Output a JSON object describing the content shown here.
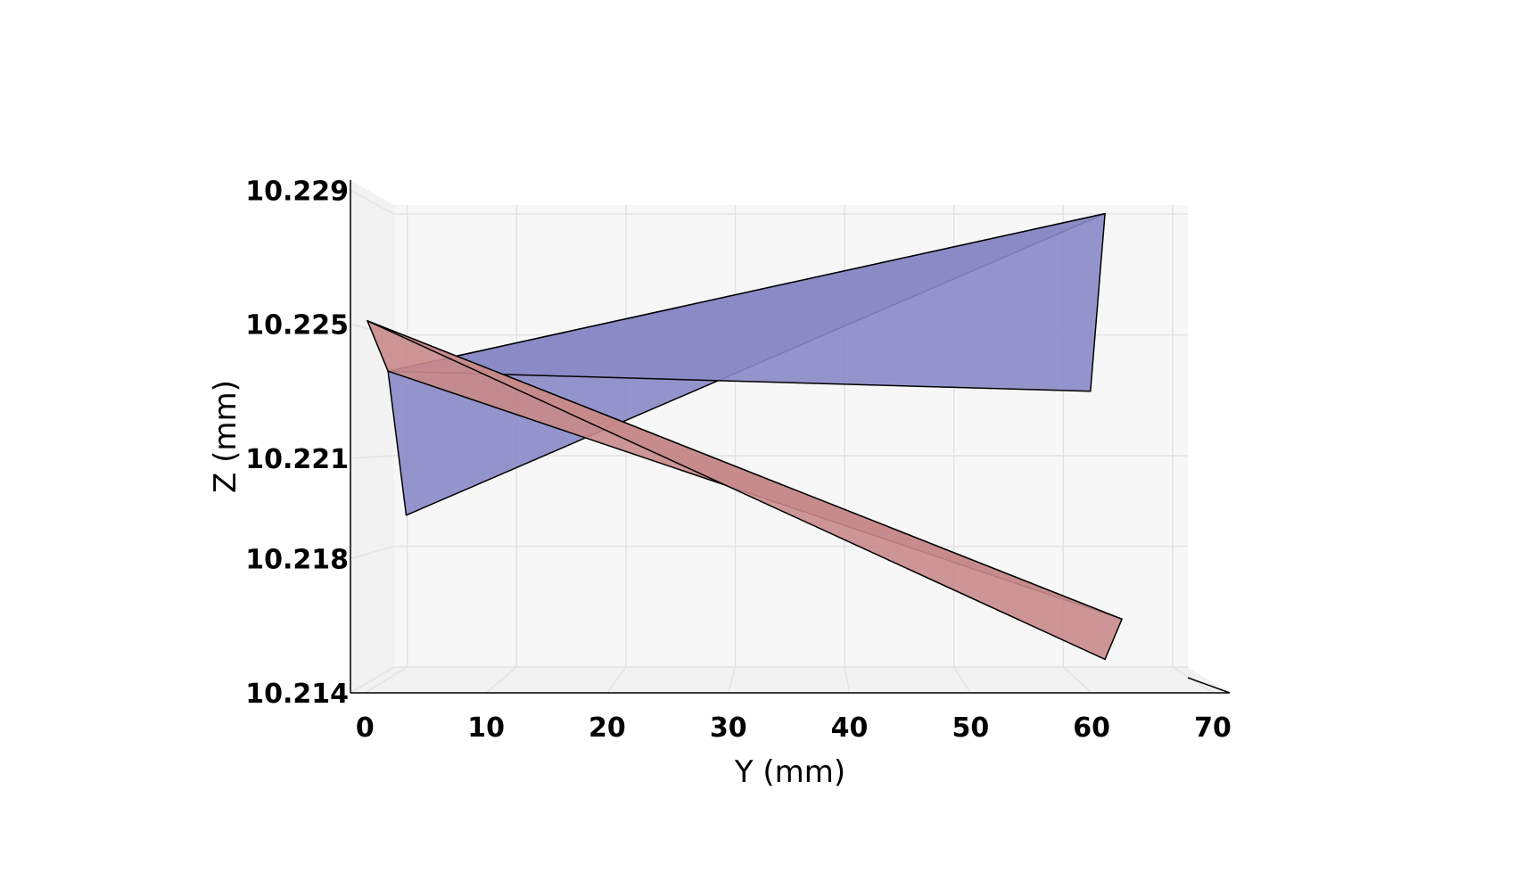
{
  "chart_data": {
    "type": "surface3d",
    "view": "projection onto Y-Z plane",
    "xlabel": "Y (mm)",
    "ylabel": "Z (mm)",
    "xlim": [
      -1.2,
      71.4
    ],
    "ylim": [
      10.214,
      10.2293
    ],
    "x_ticks": [
      0,
      10,
      20,
      30,
      40,
      50,
      60,
      70
    ],
    "y_ticks": [
      10.214,
      10.218,
      10.221,
      10.225,
      10.229
    ],
    "y_tick_labels": [
      "10.214",
      "10.218",
      "10.221",
      "10.225",
      "10.229"
    ],
    "grid": true,
    "surfaces": [
      {
        "color": "#8888c6",
        "triangles": [
          [
            [
              1.9,
              10.2236
            ],
            [
              3.4,
              10.2193
            ],
            [
              61.1,
              10.2283
            ]
          ],
          [
            [
              1.9,
              10.2236
            ],
            [
              61.1,
              10.2283
            ],
            [
              59.9,
              10.223
            ]
          ]
        ]
      },
      {
        "color": "#c88a8a",
        "triangles": [
          [
            [
              0.2,
              10.2251
            ],
            [
              1.9,
              10.2236
            ],
            [
              62.5,
              10.2162
            ]
          ],
          [
            [
              0.2,
              10.2251
            ],
            [
              62.5,
              10.2162
            ],
            [
              61.1,
              10.215
            ]
          ]
        ]
      }
    ]
  }
}
